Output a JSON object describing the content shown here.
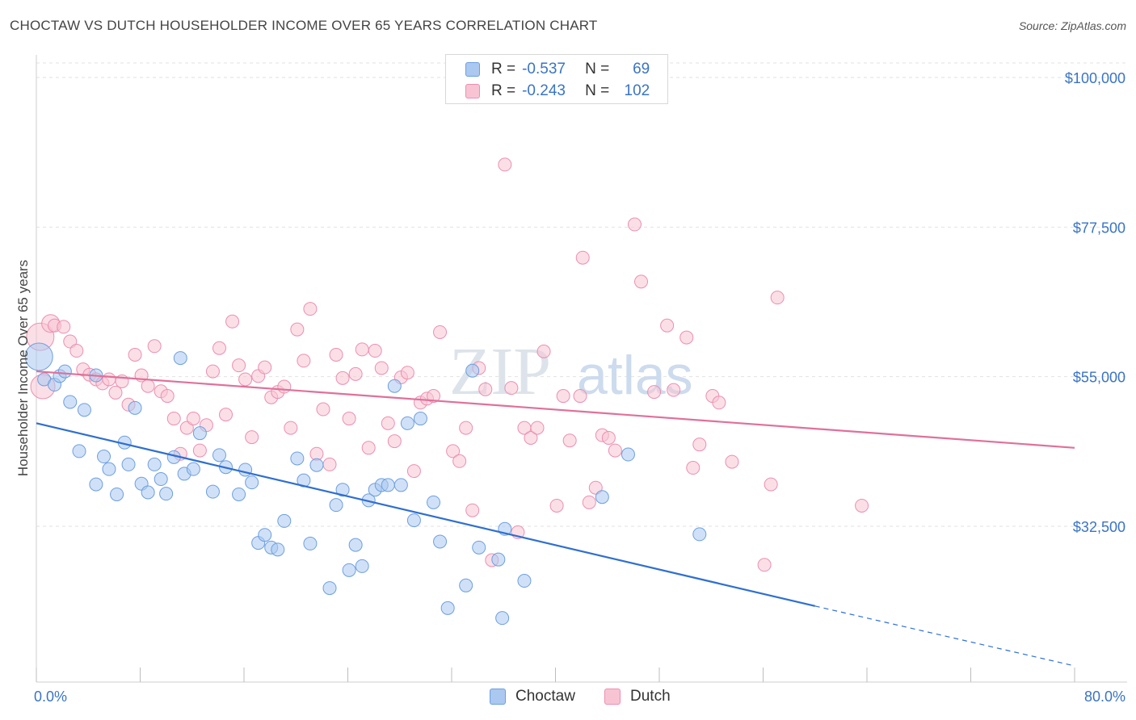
{
  "header": {
    "title": "CHOCTAW VS DUTCH HOUSEHOLDER INCOME OVER 65 YEARS CORRELATION CHART",
    "source": "Source: ZipAtlas.com"
  },
  "watermark": {
    "zip": "ZIP",
    "atlas": "atlas"
  },
  "legend": {
    "r_label": "R =",
    "n_label": "N =",
    "rows": [
      {
        "r": "-0.537",
        "n": "69"
      },
      {
        "r": "-0.243",
        "n": "102"
      }
    ]
  },
  "bottom_legend": {
    "choctaw": "Choctaw",
    "dutch": "Dutch"
  },
  "colors": {
    "choctaw_fill": "#aac8f0",
    "choctaw_stroke": "#6d9fe0",
    "choctaw_line": "#2f6fd0",
    "dutch_fill": "#f8c4d4",
    "dutch_stroke": "#ec8fb0",
    "dutch_line": "#e0709a",
    "tick_label": "#3a74c4"
  },
  "chart_data": {
    "type": "scatter",
    "title": "CHOCTAW VS DUTCH HOUSEHOLDER INCOME OVER 65 YEARS CORRELATION CHART",
    "xlabel": "",
    "ylabel": "Householder Income Over 65 years",
    "xlim": [
      0,
      80
    ],
    "ylim": [
      12500,
      105000
    ],
    "x_tick_labels": [
      "0.0%",
      "80.0%"
    ],
    "y_ticks": [
      32500,
      55000,
      77500,
      100000
    ],
    "y_tick_labels": [
      "$32,500",
      "$55,000",
      "$77,500",
      "$100,000"
    ],
    "grid": true,
    "legend_position": "top-center",
    "series": [
      {
        "name": "Choctaw",
        "r": -0.537,
        "n": 69,
        "trend": {
          "x0": 0,
          "y0": 48000,
          "x1": 60,
          "y1": 20500,
          "dashed_to_x": 80,
          "dashed_to_y": 11500
        },
        "points": [
          [
            0.2,
            58000,
            16
          ],
          [
            0.6,
            54600,
            7
          ],
          [
            1.4,
            53800,
            7
          ],
          [
            1.8,
            55100,
            7
          ],
          [
            2.2,
            55800,
            7
          ],
          [
            2.6,
            51200,
            7
          ],
          [
            3.3,
            43800,
            7
          ],
          [
            3.7,
            50000,
            7
          ],
          [
            4.6,
            55200,
            7
          ],
          [
            4.6,
            38800,
            7
          ],
          [
            5.2,
            43000,
            7
          ],
          [
            5.6,
            41100,
            7
          ],
          [
            6.2,
            37300,
            7
          ],
          [
            6.8,
            45100,
            7
          ],
          [
            7.1,
            41800,
            7
          ],
          [
            7.6,
            50300,
            7
          ],
          [
            8.1,
            38900,
            7
          ],
          [
            8.6,
            37600,
            7
          ],
          [
            9.1,
            41800,
            7
          ],
          [
            9.6,
            39600,
            7
          ],
          [
            10.0,
            37400,
            7
          ],
          [
            10.6,
            42900,
            7
          ],
          [
            11.4,
            40400,
            7
          ],
          [
            12.1,
            41100,
            7
          ],
          [
            11.1,
            57800,
            7
          ],
          [
            12.6,
            46500,
            7
          ],
          [
            13.6,
            37700,
            7
          ],
          [
            14.1,
            43200,
            7
          ],
          [
            14.6,
            41400,
            7
          ],
          [
            15.6,
            37300,
            7
          ],
          [
            16.1,
            41000,
            7
          ],
          [
            16.6,
            39100,
            7
          ],
          [
            17.1,
            30000,
            7
          ],
          [
            17.6,
            31200,
            7
          ],
          [
            18.1,
            29300,
            7
          ],
          [
            18.6,
            29000,
            7
          ],
          [
            19.1,
            33300,
            7
          ],
          [
            20.1,
            42700,
            7
          ],
          [
            20.6,
            39400,
            7
          ],
          [
            21.1,
            29900,
            7
          ],
          [
            21.6,
            41700,
            7
          ],
          [
            22.6,
            23200,
            7
          ],
          [
            23.1,
            35700,
            7
          ],
          [
            23.6,
            38000,
            7
          ],
          [
            24.1,
            25900,
            7
          ],
          [
            24.6,
            29700,
            7
          ],
          [
            25.1,
            26500,
            7
          ],
          [
            25.6,
            36400,
            7
          ],
          [
            26.1,
            38000,
            7
          ],
          [
            26.6,
            38700,
            7
          ],
          [
            27.6,
            53600,
            7
          ],
          [
            27.1,
            38700,
            7
          ],
          [
            28.1,
            38700,
            7
          ],
          [
            28.6,
            48000,
            7
          ],
          [
            29.1,
            33400,
            7
          ],
          [
            29.6,
            48700,
            7
          ],
          [
            30.6,
            36100,
            7
          ],
          [
            31.1,
            30200,
            7
          ],
          [
            33.1,
            23600,
            7
          ],
          [
            33.6,
            55900,
            7
          ],
          [
            34.1,
            29300,
            7
          ],
          [
            35.6,
            27500,
            7
          ],
          [
            36.1,
            32100,
            7
          ],
          [
            37.6,
            24300,
            7
          ],
          [
            31.7,
            20200,
            7
          ],
          [
            35.9,
            18700,
            7
          ],
          [
            43.6,
            36900,
            7
          ],
          [
            45.6,
            43300,
            7
          ],
          [
            51.1,
            31300,
            7
          ]
        ]
      },
      {
        "name": "Dutch",
        "r": -0.243,
        "n": 102,
        "trend": {
          "x0": 0,
          "y0": 55800,
          "x1": 80,
          "y1": 44300
        },
        "points": [
          [
            0.3,
            61000,
            16
          ],
          [
            0.5,
            53500,
            14
          ],
          [
            1.1,
            63000,
            10
          ],
          [
            1.4,
            62700,
            7
          ],
          [
            2.1,
            62500,
            7
          ],
          [
            2.6,
            60300,
            7
          ],
          [
            3.1,
            58900,
            7
          ],
          [
            3.6,
            56100,
            7
          ],
          [
            4.1,
            55300,
            7
          ],
          [
            4.6,
            54600,
            7
          ],
          [
            5.1,
            54000,
            7
          ],
          [
            5.6,
            54600,
            7
          ],
          [
            6.1,
            52600,
            7
          ],
          [
            6.6,
            54300,
            7
          ],
          [
            7.1,
            50800,
            7
          ],
          [
            7.6,
            58300,
            7
          ],
          [
            8.1,
            55200,
            7
          ],
          [
            8.6,
            53600,
            7
          ],
          [
            9.1,
            59600,
            7
          ],
          [
            9.6,
            52800,
            7
          ],
          [
            10.1,
            52100,
            7
          ],
          [
            10.6,
            48700,
            7
          ],
          [
            11.1,
            43400,
            7
          ],
          [
            11.6,
            47300,
            7
          ],
          [
            12.1,
            48700,
            7
          ],
          [
            12.6,
            43900,
            7
          ],
          [
            13.1,
            47700,
            7
          ],
          [
            13.6,
            55800,
            7
          ],
          [
            14.1,
            59300,
            7
          ],
          [
            14.6,
            49300,
            7
          ],
          [
            15.1,
            63300,
            7
          ],
          [
            15.6,
            56700,
            7
          ],
          [
            16.1,
            54600,
            7
          ],
          [
            16.6,
            45900,
            7
          ],
          [
            17.1,
            55100,
            7
          ],
          [
            17.6,
            56400,
            7
          ],
          [
            18.1,
            51900,
            7
          ],
          [
            18.6,
            52700,
            7
          ],
          [
            19.1,
            53500,
            7
          ],
          [
            19.6,
            47300,
            7
          ],
          [
            20.1,
            62100,
            7
          ],
          [
            20.6,
            57400,
            7
          ],
          [
            21.1,
            65200,
            7
          ],
          [
            21.6,
            43400,
            7
          ],
          [
            22.1,
            50100,
            7
          ],
          [
            22.6,
            41800,
            7
          ],
          [
            23.1,
            58300,
            7
          ],
          [
            23.6,
            54800,
            7
          ],
          [
            24.1,
            48700,
            7
          ],
          [
            24.6,
            55400,
            7
          ],
          [
            25.1,
            59100,
            7
          ],
          [
            25.6,
            44300,
            7
          ],
          [
            26.1,
            58900,
            7
          ],
          [
            26.6,
            56300,
            7
          ],
          [
            27.1,
            48000,
            7
          ],
          [
            27.6,
            45300,
            7
          ],
          [
            28.1,
            54900,
            7
          ],
          [
            28.6,
            55600,
            7
          ],
          [
            29.1,
            40800,
            7
          ],
          [
            29.6,
            51100,
            7
          ],
          [
            30.1,
            51700,
            7
          ],
          [
            30.6,
            52100,
            7
          ],
          [
            31.1,
            61700,
            7
          ],
          [
            32.1,
            43800,
            7
          ],
          [
            32.6,
            42300,
            7
          ],
          [
            33.1,
            47300,
            7
          ],
          [
            33.6,
            34900,
            7
          ],
          [
            34.1,
            56300,
            7
          ],
          [
            34.6,
            53100,
            7
          ],
          [
            35.1,
            27400,
            7
          ],
          [
            36.1,
            86900,
            7
          ],
          [
            36.6,
            53300,
            7
          ],
          [
            37.1,
            31600,
            7
          ],
          [
            37.6,
            47300,
            7
          ],
          [
            38.1,
            45800,
            7
          ],
          [
            38.6,
            47300,
            7
          ],
          [
            39.1,
            58800,
            7
          ],
          [
            40.1,
            35600,
            7
          ],
          [
            40.6,
            52100,
            7
          ],
          [
            41.1,
            45400,
            7
          ],
          [
            42.1,
            72900,
            7
          ],
          [
            42.6,
            36100,
            7
          ],
          [
            43.1,
            38300,
            7
          ],
          [
            43.6,
            46200,
            7
          ],
          [
            44.6,
            43900,
            7
          ],
          [
            46.1,
            77900,
            7
          ],
          [
            46.6,
            69300,
            7
          ],
          [
            47.6,
            52700,
            7
          ],
          [
            48.6,
            62700,
            7
          ],
          [
            49.1,
            53000,
            7
          ],
          [
            50.1,
            60900,
            7
          ],
          [
            50.6,
            41300,
            7
          ],
          [
            51.1,
            44800,
            7
          ],
          [
            52.1,
            52100,
            7
          ],
          [
            52.6,
            51100,
            7
          ],
          [
            53.6,
            42200,
            7
          ],
          [
            56.1,
            26700,
            7
          ],
          [
            56.6,
            38800,
            7
          ],
          [
            57.1,
            66900,
            7
          ],
          [
            63.6,
            35600,
            7
          ],
          [
            41.9,
            52100,
            7
          ],
          [
            44.1,
            45800,
            7
          ]
        ]
      }
    ]
  }
}
